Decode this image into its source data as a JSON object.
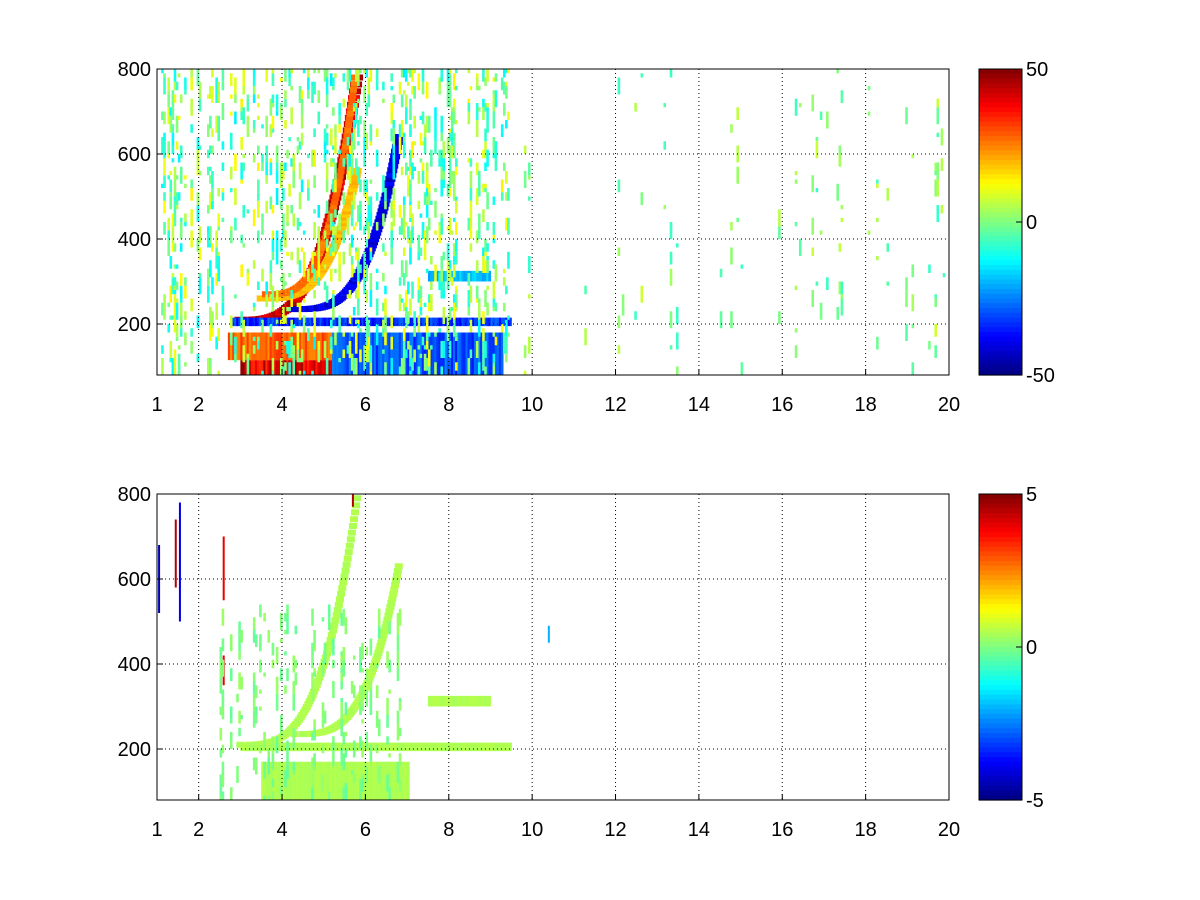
{
  "chart_data": [
    {
      "type": "heatmap",
      "title": "",
      "xlabel": "",
      "ylabel": "",
      "xlim": [
        1,
        20
      ],
      "ylim": [
        80,
        800
      ],
      "x_ticks": [
        "1",
        "2",
        "4",
        "6",
        "8",
        "10",
        "12",
        "14",
        "16",
        "18",
        "20"
      ],
      "y_ticks": [
        "200",
        "400",
        "600",
        "800"
      ],
      "grid": true,
      "colormap": "jet",
      "colorbar": {
        "min": -50,
        "max": 50,
        "ticks": [
          "50",
          "0",
          "-50"
        ]
      },
      "features": [
        {
          "kind": "curve",
          "x0": 3.0,
          "x1": 5.8,
          "y0": 210,
          "y1": 780,
          "value": 45,
          "width": 12
        },
        {
          "kind": "curve",
          "x0": 3.5,
          "x1": 5.8,
          "y0": 260,
          "y1": 560,
          "value": 20,
          "width": 9
        },
        {
          "kind": "curve",
          "x0": 3.6,
          "x1": 5.75,
          "y0": 270,
          "y1": 780,
          "value": 28,
          "width": 7
        },
        {
          "kind": "curve",
          "x0": 4.3,
          "x1": 6.8,
          "y0": 235,
          "y1": 640,
          "value": -42,
          "width": 10
        },
        {
          "kind": "band",
          "x0": 3.0,
          "x1": 6.6,
          "y0": 80,
          "y1": 115,
          "value": 44
        },
        {
          "kind": "band",
          "x0": 2.7,
          "x1": 7.0,
          "y0": 115,
          "y1": 180,
          "value": 30
        },
        {
          "kind": "band",
          "x0": 5.2,
          "x1": 9.3,
          "y0": 80,
          "y1": 180,
          "value": -32
        },
        {
          "kind": "band",
          "x0": 2.8,
          "x1": 9.5,
          "y0": 195,
          "y1": 215,
          "value": -35
        },
        {
          "kind": "band",
          "x0": 7.5,
          "x1": 9.0,
          "y0": 300,
          "y1": 325,
          "value": -20
        },
        {
          "kind": "noise",
          "x0": 1.0,
          "x1": 9.5,
          "y0": 80,
          "y1": 800,
          "density": 0.35,
          "amp": 14
        },
        {
          "kind": "noise",
          "x0": 9.5,
          "x1": 20.0,
          "y0": 80,
          "y1": 800,
          "density": 0.12,
          "amp": 8
        }
      ]
    },
    {
      "type": "heatmap",
      "title": "",
      "xlabel": "",
      "ylabel": "",
      "xlim": [
        1,
        20
      ],
      "ylim": [
        80,
        800
      ],
      "x_ticks": [
        "1",
        "2",
        "4",
        "6",
        "8",
        "10",
        "12",
        "14",
        "16",
        "18",
        "20"
      ],
      "y_ticks": [
        "200",
        "400",
        "600",
        "800"
      ],
      "grid": true,
      "colormap": "jet",
      "colorbar": {
        "min": -5,
        "max": 5,
        "ticks": [
          "5",
          "0",
          "-5"
        ]
      },
      "features": [
        {
          "kind": "curve",
          "x0": 3.0,
          "x1": 5.8,
          "y0": 210,
          "y1": 790,
          "value": 0.5,
          "width": 8
        },
        {
          "kind": "curve",
          "x0": 4.3,
          "x1": 6.8,
          "y0": 235,
          "y1": 630,
          "value": 0.5,
          "width": 8
        },
        {
          "kind": "band",
          "x0": 3.5,
          "x1": 7.0,
          "y0": 80,
          "y1": 170,
          "value": 0.5
        },
        {
          "kind": "band",
          "x0": 3.0,
          "x1": 9.5,
          "y0": 195,
          "y1": 215,
          "value": 0.5
        },
        {
          "kind": "band",
          "x0": 7.5,
          "x1": 9.0,
          "y0": 300,
          "y1": 325,
          "value": 0.5
        },
        {
          "kind": "streak",
          "x": 1.05,
          "y0": 520,
          "y1": 680,
          "value": -4.5
        },
        {
          "kind": "streak",
          "x": 1.45,
          "y0": 580,
          "y1": 740,
          "value": 4.5
        },
        {
          "kind": "streak",
          "x": 1.55,
          "y0": 500,
          "y1": 780,
          "value": -4.0
        },
        {
          "kind": "streak",
          "x": 2.6,
          "y0": 550,
          "y1": 700,
          "value": 4.0
        },
        {
          "kind": "streak",
          "x": 2.6,
          "y0": 350,
          "y1": 420,
          "value": 4.0
        },
        {
          "kind": "streak",
          "x": 5.7,
          "y0": 770,
          "y1": 800,
          "value": 4.5
        },
        {
          "kind": "streak",
          "x": 10.4,
          "y0": 450,
          "y1": 490,
          "value": -2.0
        },
        {
          "kind": "noise",
          "x0": 2.5,
          "x1": 7.0,
          "y0": 80,
          "y1": 520,
          "density": 0.3,
          "amp": 0.3
        }
      ]
    }
  ]
}
